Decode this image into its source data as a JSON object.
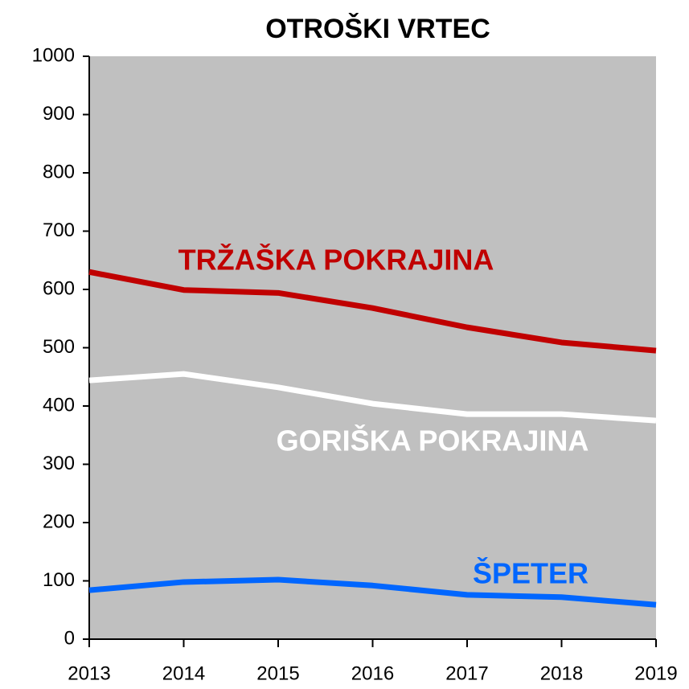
{
  "chart_data": {
    "type": "line",
    "title": "OTROŠKI VRTEC",
    "x": [
      2013,
      2014,
      2015,
      2016,
      2017,
      2018,
      2019
    ],
    "xlim": [
      2013,
      2019
    ],
    "xticks": [
      2013,
      2014,
      2015,
      2016,
      2017,
      2018,
      2019
    ],
    "ylim": [
      0,
      1000
    ],
    "yticks": [
      0,
      100,
      200,
      300,
      400,
      500,
      600,
      700,
      800,
      900,
      1000
    ],
    "grid": false,
    "background": "#c0c0c0",
    "series": [
      {
        "name": "TRŽAŠKA POKRAJINA",
        "color": "#c00000",
        "values": [
          630,
          599,
          594,
          568,
          535,
          509,
          495
        ]
      },
      {
        "name": "GORIŠKA POKRAJINA",
        "color": "#ffffff",
        "values": [
          444,
          455,
          432,
          404,
          386,
          386,
          375
        ]
      },
      {
        "name": "ŠPETER",
        "color": "#0066ff",
        "values": [
          84,
          98,
          102,
          92,
          76,
          72,
          59
        ]
      }
    ]
  }
}
